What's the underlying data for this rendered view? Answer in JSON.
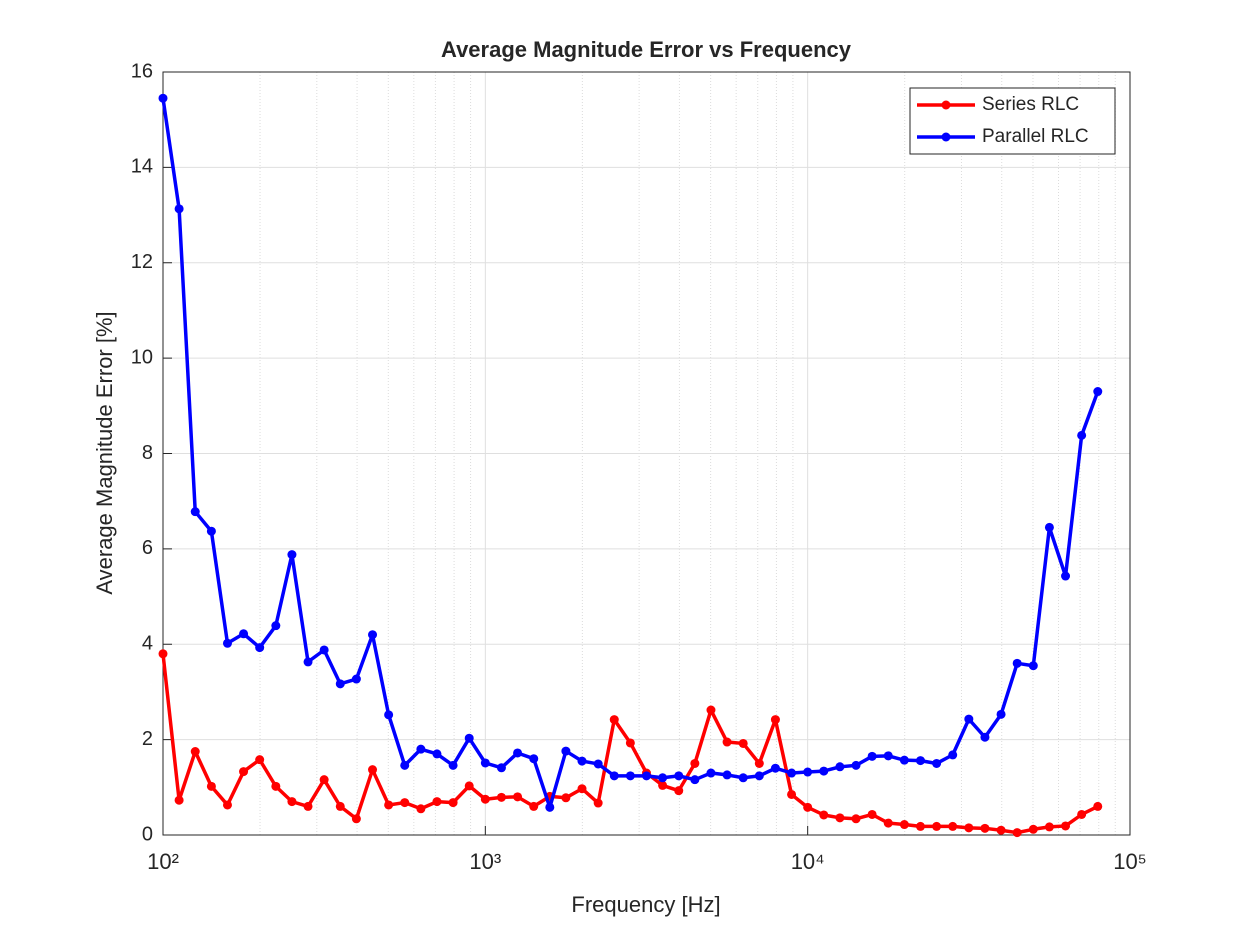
{
  "chart_data": {
    "type": "line",
    "title": "Average Magnitude Error vs Frequency",
    "xlabel": "Frequency [Hz]",
    "ylabel": "Average Magnitude Error [%]",
    "xscale": "log",
    "x": [
      100,
      112.2,
      125.9,
      141.3,
      158.5,
      177.8,
      199.5,
      223.9,
      251.2,
      281.8,
      316.2,
      354.8,
      398.1,
      446.7,
      501.2,
      562.3,
      631,
      707.9,
      794.3,
      891.3,
      1000,
      1122,
      1259,
      1413,
      1585,
      1778,
      1995,
      2239,
      2512,
      2818,
      3162,
      3548,
      3981,
      4467,
      5012,
      5623,
      6310,
      7079,
      7943,
      8913,
      10000,
      11220,
      12589,
      14125,
      15849,
      17783,
      19953,
      22387,
      25119,
      28184,
      31623,
      35481,
      39811,
      44668,
      50119,
      56234,
      63096,
      70795,
      79433
    ],
    "series": [
      {
        "name": "Series RLC",
        "color": "#ff0000",
        "values": [
          3.8,
          0.73,
          1.75,
          1.02,
          0.63,
          1.33,
          1.58,
          1.02,
          0.7,
          0.6,
          1.16,
          0.6,
          0.34,
          1.37,
          0.63,
          0.68,
          0.55,
          0.7,
          0.68,
          1.03,
          0.75,
          0.79,
          0.8,
          0.6,
          0.81,
          0.78,
          0.97,
          0.67,
          2.42,
          1.93,
          1.3,
          1.04,
          0.93,
          1.5,
          2.62,
          1.95,
          1.92,
          1.5,
          2.42,
          0.85,
          0.58,
          0.42,
          0.36,
          0.34,
          0.43,
          0.25,
          0.22,
          0.18,
          0.18,
          0.18,
          0.15,
          0.14,
          0.1,
          0.05,
          0.12,
          0.17,
          0.19,
          0.43,
          0.6
        ]
      },
      {
        "name": "Parallel RLC",
        "color": "#0000ff",
        "values": [
          15.45,
          13.13,
          6.78,
          6.37,
          4.02,
          4.22,
          3.93,
          4.39,
          5.88,
          3.63,
          3.88,
          3.17,
          3.27,
          4.2,
          2.52,
          1.46,
          1.8,
          1.7,
          1.46,
          2.03,
          1.51,
          1.41,
          1.72,
          1.6,
          0.58,
          1.76,
          1.55,
          1.49,
          1.24,
          1.24,
          1.24,
          1.2,
          1.24,
          1.16,
          1.3,
          1.26,
          1.2,
          1.24,
          1.4,
          1.3,
          1.32,
          1.34,
          1.43,
          1.46,
          1.65,
          1.66,
          1.57,
          1.56,
          1.5,
          1.68,
          2.43,
          2.05,
          2.53,
          3.6,
          3.55,
          6.45,
          5.43,
          8.38,
          9.3
        ]
      }
    ],
    "xlim": [
      100,
      100000
    ],
    "xticks": [
      {
        "value": 100,
        "label": "10²"
      },
      {
        "value": 1000,
        "label": "10³"
      },
      {
        "value": 10000,
        "label": "10⁴"
      },
      {
        "value": 100000,
        "label": "10⁵"
      }
    ],
    "ylim": [
      0,
      16
    ],
    "yticks": [
      0,
      2,
      4,
      6,
      8,
      10,
      12,
      14,
      16
    ],
    "grid": true,
    "minor_grid": true,
    "legend": "northeast"
  }
}
